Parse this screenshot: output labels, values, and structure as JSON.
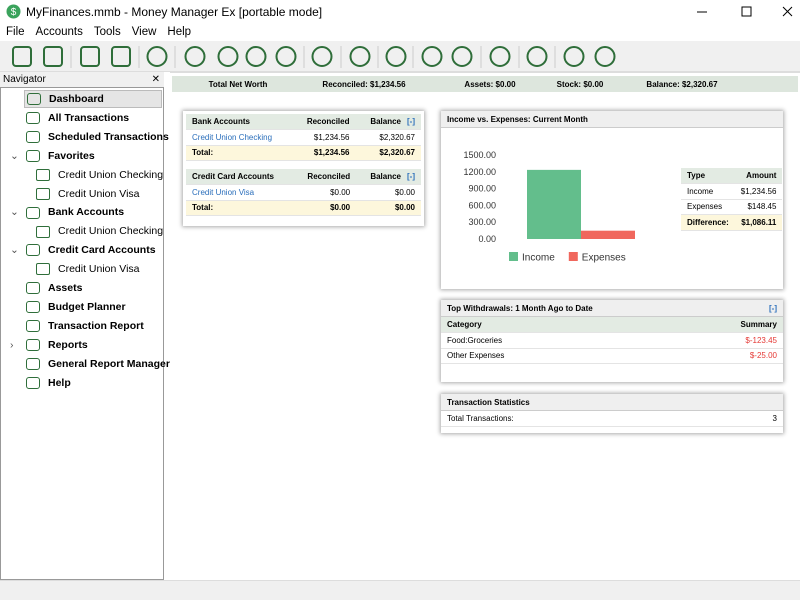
{
  "window": {
    "title": "MyFinances.mmb - Money Manager Ex [portable mode]"
  },
  "menu": [
    "File",
    "Accounts",
    "Tools",
    "View",
    "Help"
  ],
  "navigator": {
    "title": "Navigator",
    "items": [
      {
        "label": "Dashboard",
        "selected": true
      },
      {
        "label": "All Transactions"
      },
      {
        "label": "Scheduled Transactions"
      },
      {
        "label": "Favorites",
        "children": [
          {
            "label": "Credit Union Checking"
          },
          {
            "label": "Credit Union Visa"
          }
        ]
      },
      {
        "label": "Bank Accounts",
        "children": [
          {
            "label": "Credit Union Checking"
          }
        ]
      },
      {
        "label": "Credit Card Accounts",
        "children": [
          {
            "label": "Credit Union Visa"
          }
        ]
      },
      {
        "label": "Assets"
      },
      {
        "label": "Budget Planner"
      },
      {
        "label": "Transaction Report"
      },
      {
        "label": "Reports",
        "collapsed": true
      },
      {
        "label": "General Report Manager"
      },
      {
        "label": "Help"
      }
    ]
  },
  "summary": [
    "Total Net Worth",
    "Reconciled: $1,234.56",
    "Assets: $0.00",
    "Stock: $0.00",
    "Balance: $2,320.67"
  ],
  "bank_accounts": {
    "headers": [
      "Bank Accounts",
      "Reconciled",
      "Balance"
    ],
    "toggle": "[-]",
    "rows": [
      [
        "Credit Union Checking",
        "$1,234.56",
        "$2,320.67"
      ]
    ],
    "total": [
      "Total:",
      "$1,234.56",
      "$2,320.67"
    ]
  },
  "credit_card_accounts": {
    "headers": [
      "Credit Card Accounts",
      "Reconciled",
      "Balance"
    ],
    "toggle": "[-]",
    "rows": [
      [
        "Credit Union Visa",
        "$0.00",
        "$0.00"
      ]
    ],
    "total": [
      "Total:",
      "$0.00",
      "$0.00"
    ]
  },
  "chart_data": {
    "type": "bar",
    "title": "Income vs. Expenses: Current Month",
    "categories": [
      null
    ],
    "series": [
      {
        "name": "Income",
        "color": "#63be8c",
        "values": [
          1234.56
        ]
      },
      {
        "name": "Expenses",
        "color": "#f0675d",
        "values": [
          148.45
        ]
      }
    ],
    "ylim": [
      0,
      1500
    ],
    "yticks": [
      {
        "value": 0,
        "label": "0.00"
      },
      {
        "value": 300,
        "label": "300.00"
      },
      {
        "value": 600,
        "label": "600.00"
      },
      {
        "value": 900,
        "label": "900.00"
      },
      {
        "value": 1200,
        "label": "1200.00"
      },
      {
        "value": 1500,
        "label": "1500.00"
      }
    ],
    "grid": false,
    "legend": "bottom"
  },
  "income_table": {
    "headers": [
      "Type",
      "Amount"
    ],
    "rows": [
      [
        "Income",
        "$1,234.56"
      ],
      [
        "Expenses",
        "$148.45"
      ]
    ],
    "difference": [
      "Difference:",
      "$1,086.11"
    ]
  },
  "top_withdrawals": {
    "title": "Top Withdrawals: 1 Month Ago to Date",
    "toggle": "[-]",
    "headers": [
      "Category",
      "Summary"
    ],
    "rows": [
      [
        "Food:Groceries",
        "$-123.45"
      ],
      [
        "Other Expenses",
        "$-25.00"
      ]
    ]
  },
  "transaction_statistics": {
    "title": "Transaction Statistics",
    "rows": [
      [
        "Total Transactions:",
        "3"
      ]
    ]
  }
}
